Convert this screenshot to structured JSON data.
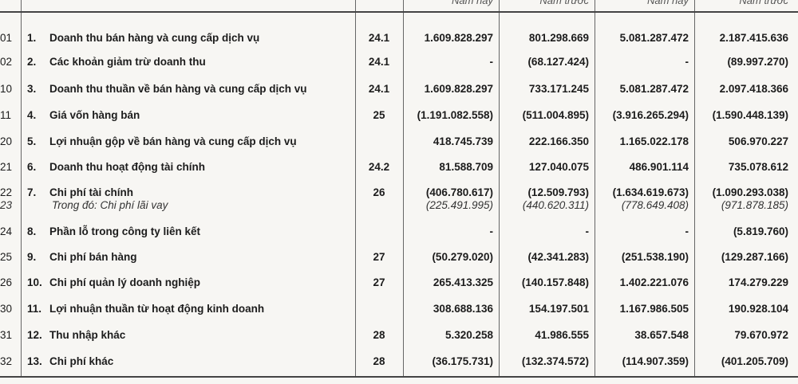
{
  "header": {
    "columns": [
      "",
      "",
      "",
      "Năm nay",
      "Năm trước",
      "Năm nay",
      "Năm trước"
    ]
  },
  "rows": [
    {
      "code": "01",
      "no": "1.",
      "label": "Doanh thu bán hàng và cung cấp dịch vụ",
      "note": "24.1",
      "v": [
        "1.609.828.297",
        "801.298.669",
        "5.081.287.472",
        "2.187.415.636"
      ]
    },
    {
      "code": "02",
      "no": "2.",
      "label": "Các khoản giảm trừ doanh thu",
      "note": "24.1",
      "v": [
        "-",
        "(68.127.424)",
        "-",
        "(89.997.270)"
      ]
    },
    {
      "code": "10",
      "no": "3.",
      "label": "Doanh thu thuần về bán hàng và cung cấp dịch vụ",
      "note": "24.1",
      "v": [
        "1.609.828.297",
        "733.171.245",
        "5.081.287.472",
        "2.097.418.366"
      ]
    },
    {
      "code": "11",
      "no": "4.",
      "label": "Giá vốn hàng bán",
      "note": "25",
      "v": [
        "(1.191.082.558)",
        "(511.004.895)",
        "(3.916.265.294)",
        "(1.590.448.139)"
      ]
    },
    {
      "code": "20",
      "no": "5.",
      "label": "Lợi nhuận gộp về bán hàng và cung cấp dịch vụ",
      "note": "",
      "v": [
        "418.745.739",
        "222.166.350",
        "1.165.022.178",
        "506.970.227"
      ]
    },
    {
      "code": "21",
      "no": "6.",
      "label": "Doanh thu hoạt động tài chính",
      "note": "24.2",
      "v": [
        "81.588.709",
        "127.040.075",
        "486.901.114",
        "735.078.612"
      ]
    },
    {
      "code": "22",
      "no": "7.",
      "label": "Chi phí tài chính",
      "note": "26",
      "v": [
        "(406.780.617)",
        "(12.509.793)",
        "(1.634.619.673)",
        "(1.090.293.038)"
      ]
    },
    {
      "code": "23",
      "no": "",
      "label": "Trong đó: Chi phí lãi vay",
      "note": "",
      "v": [
        "(225.491.995)",
        "(440.620.311)",
        "(778.649.408)",
        "(971.878.185)"
      ]
    },
    {
      "code": "24",
      "no": "8.",
      "label": "Phần lỗ trong công ty liên kết",
      "note": "",
      "v": [
        "-",
        "-",
        "-",
        "(5.819.760)"
      ]
    },
    {
      "code": "25",
      "no": "9.",
      "label": "Chi phí bán hàng",
      "note": "27",
      "v": [
        "(50.279.020)",
        "(42.341.283)",
        "(251.538.190)",
        "(129.287.166)"
      ]
    },
    {
      "code": "26",
      "no": "10.",
      "label": "Chi phí quản lý doanh nghiệp",
      "note": "27",
      "v": [
        "265.413.325",
        "(140.157.848)",
        "1.402.221.076",
        "174.279.229"
      ]
    },
    {
      "code": "30",
      "no": "11.",
      "label": "Lợi nhuận thuần từ hoạt động kinh doanh",
      "note": "",
      "v": [
        "308.688.136",
        "154.197.501",
        "1.167.986.505",
        "190.928.104"
      ]
    },
    {
      "code": "31",
      "no": "12.",
      "label": "Thu nhập khác",
      "note": "28",
      "v": [
        "5.320.258",
        "41.986.555",
        "38.657.548",
        "79.670.972"
      ]
    },
    {
      "code": "32",
      "no": "13.",
      "label": "Chi phí khác",
      "note": "28",
      "v": [
        "(36.175.731)",
        "(132.374.572)",
        "(114.907.359)",
        "(401.205.709)"
      ]
    }
  ]
}
